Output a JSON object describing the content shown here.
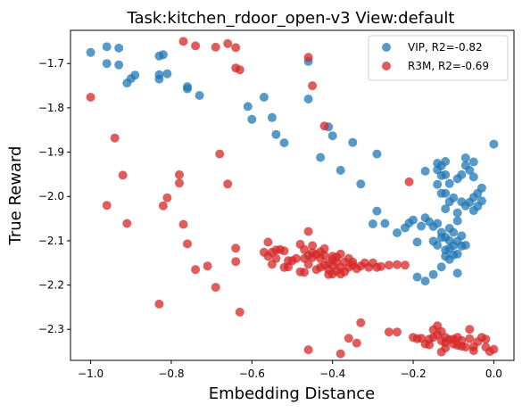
{
  "chart_data": {
    "type": "scatter",
    "title": "Task:kitchen_rdoor_open-v3 View:default",
    "xlabel": "Embedding Distance",
    "ylabel": "True Reward",
    "xlim": [
      -1.05,
      0.05
    ],
    "ylim": [
      -2.37,
      -1.625
    ],
    "xticks": [
      -1.0,
      -0.8,
      -0.6,
      -0.4,
      -0.2,
      0.0
    ],
    "xtick_labels": [
      "−1.0",
      "−0.8",
      "−0.6",
      "−0.4",
      "−0.2",
      "0.0"
    ],
    "yticks": [
      -1.7,
      -1.8,
      -1.9,
      -2.0,
      -2.1,
      -2.2,
      -2.3
    ],
    "ytick_labels": [
      "−1.7",
      "−1.8",
      "−1.9",
      "−2.0",
      "−2.1",
      "−2.2",
      "−2.3"
    ],
    "grid": false,
    "legend_position": "top-right",
    "series": [
      {
        "name": "VIP, R2=-0.82",
        "color": "#1f77b4",
        "points": [
          [
            -1.0,
            -1.675
          ],
          [
            -0.96,
            -1.662
          ],
          [
            -0.96,
            -1.7
          ],
          [
            -0.93,
            -1.665
          ],
          [
            -0.93,
            -1.703
          ],
          [
            -0.91,
            -1.744
          ],
          [
            -0.9,
            -1.734
          ],
          [
            -0.89,
            -1.726
          ],
          [
            -0.83,
            -1.683
          ],
          [
            -0.82,
            -1.68
          ],
          [
            -0.83,
            -1.735
          ],
          [
            -0.83,
            -1.725
          ],
          [
            -0.81,
            -1.723
          ],
          [
            -0.76,
            -1.752
          ],
          [
            -0.76,
            -1.757
          ],
          [
            -0.73,
            -1.772
          ],
          [
            -0.61,
            -1.797
          ],
          [
            -0.6,
            -1.826
          ],
          [
            -0.57,
            -1.776
          ],
          [
            -0.55,
            -1.822
          ],
          [
            -0.54,
            -1.86
          ],
          [
            -0.52,
            -1.879
          ],
          [
            -0.46,
            -1.695
          ],
          [
            -0.46,
            -1.78
          ],
          [
            -0.43,
            -1.912
          ],
          [
            -0.41,
            -1.843
          ],
          [
            -0.4,
            -1.863
          ],
          [
            -0.38,
            -1.941
          ],
          [
            -0.35,
            -1.878
          ],
          [
            -0.33,
            -1.972
          ],
          [
            -0.29,
            -1.904
          ],
          [
            -0.3,
            -2.062
          ],
          [
            -0.29,
            -2.033
          ],
          [
            -0.27,
            -2.061
          ],
          [
            -0.24,
            -2.082
          ],
          [
            -0.22,
            -2.071
          ],
          [
            -0.21,
            -2.06
          ],
          [
            -0.2,
            -2.053
          ],
          [
            -0.19,
            -2.103
          ],
          [
            -0.18,
            -2.067
          ],
          [
            -0.17,
            -2.048
          ],
          [
            -0.16,
            -2.057
          ],
          [
            -0.15,
            -2.068
          ],
          [
            -0.19,
            -2.182
          ],
          [
            -0.17,
            -2.191
          ],
          [
            -0.15,
            -2.176
          ],
          [
            -0.13,
            -2.159
          ],
          [
            -0.12,
            -2.135
          ],
          [
            -0.14,
            -2.061
          ],
          [
            -0.13,
            -2.081
          ],
          [
            -0.12,
            -2.092
          ],
          [
            -0.11,
            -2.072
          ],
          [
            -0.1,
            -2.081
          ],
          [
            -0.09,
            -2.101
          ],
          [
            -0.08,
            -2.089
          ],
          [
            -0.1,
            -2.111
          ],
          [
            -0.12,
            -2.121
          ],
          [
            -0.11,
            -2.142
          ],
          [
            -0.09,
            -2.13
          ],
          [
            -0.08,
            -2.112
          ],
          [
            -0.14,
            -2.11
          ],
          [
            -0.15,
            -2.101
          ],
          [
            -0.13,
            -2.093
          ],
          [
            -0.11,
            -2.1
          ],
          [
            -0.09,
            -2.173
          ],
          [
            -0.1,
            -2.132
          ],
          [
            -0.11,
            -2.118
          ],
          [
            -0.07,
            -2.11
          ],
          [
            -0.12,
            -2.028
          ],
          [
            -0.11,
            -2.012
          ],
          [
            -0.1,
            -2.003
          ],
          [
            -0.08,
            -2.012
          ],
          [
            -0.07,
            -2.021
          ],
          [
            -0.06,
            -2.013
          ],
          [
            -0.05,
            -2.032
          ],
          [
            -0.05,
            -2.002
          ],
          [
            -0.04,
            -1.993
          ],
          [
            -0.03,
            -2.01
          ],
          [
            -0.04,
            -2.022
          ],
          [
            -0.13,
            -1.993
          ],
          [
            -0.14,
            -1.973
          ],
          [
            -0.13,
            -1.953
          ],
          [
            -0.14,
            -1.94
          ],
          [
            -0.12,
            -1.951
          ],
          [
            -0.13,
            -1.931
          ],
          [
            -0.12,
            -1.921
          ],
          [
            -0.14,
            -1.925
          ],
          [
            -0.17,
            -1.943
          ],
          [
            -0.12,
            -1.993
          ],
          [
            -0.11,
            -1.971
          ],
          [
            -0.09,
            -1.96
          ],
          [
            -0.08,
            -1.951
          ],
          [
            -0.07,
            -1.913
          ],
          [
            -0.07,
            -1.93
          ],
          [
            -0.06,
            -1.941
          ],
          [
            -0.05,
            -1.922
          ],
          [
            -0.05,
            -1.956
          ],
          [
            -0.03,
            -1.981
          ],
          [
            0.0,
            -1.882
          ],
          [
            -0.09,
            -2.037
          ],
          [
            -0.09,
            -2.055
          ]
        ]
      },
      {
        "name": "R3M, R2=-0.69",
        "color": "#d62728",
        "points": [
          [
            -1.0,
            -1.776
          ],
          [
            -0.94,
            -1.868
          ],
          [
            -0.92,
            -1.952
          ],
          [
            -0.96,
            -2.02
          ],
          [
            -0.91,
            -2.061
          ],
          [
            -0.83,
            -2.243
          ],
          [
            -0.81,
            -2.003
          ],
          [
            -0.82,
            -2.021
          ],
          [
            -0.78,
            -1.951
          ],
          [
            -0.78,
            -1.97
          ],
          [
            -0.76,
            -2.107
          ],
          [
            -0.77,
            -2.063
          ],
          [
            -0.74,
            -2.165
          ],
          [
            -0.71,
            -2.157
          ],
          [
            -0.69,
            -2.205
          ],
          [
            -0.66,
            -1.972
          ],
          [
            -0.64,
            -2.117
          ],
          [
            -0.63,
            -2.261
          ],
          [
            -0.64,
            -2.147
          ],
          [
            -0.74,
            -1.66
          ],
          [
            -0.68,
            -1.904
          ],
          [
            -0.66,
            -1.655
          ],
          [
            -0.64,
            -1.664
          ],
          [
            -0.64,
            -1.71
          ],
          [
            -0.63,
            -1.714
          ],
          [
            -0.69,
            -1.663
          ],
          [
            -0.77,
            -1.65
          ],
          [
            -0.56,
            -2.103
          ],
          [
            -0.57,
            -2.126
          ],
          [
            -0.56,
            -2.135
          ],
          [
            -0.55,
            -2.153
          ],
          [
            -0.54,
            -2.121
          ],
          [
            -0.53,
            -2.12
          ],
          [
            -0.52,
            -2.123
          ],
          [
            -0.51,
            -2.159
          ],
          [
            -0.5,
            -2.145
          ],
          [
            -0.48,
            -2.17
          ],
          [
            -0.47,
            -2.171
          ],
          [
            -0.46,
            -2.133
          ],
          [
            -0.45,
            -2.111
          ],
          [
            -0.46,
            -2.079
          ],
          [
            -0.45,
            -2.127
          ],
          [
            -0.44,
            -2.131
          ],
          [
            -0.43,
            -2.14
          ],
          [
            -0.42,
            -2.155
          ],
          [
            -0.41,
            -2.15
          ],
          [
            -0.4,
            -2.142
          ],
          [
            -0.39,
            -2.137
          ],
          [
            -0.38,
            -2.16
          ],
          [
            -0.37,
            -2.148
          ],
          [
            -0.36,
            -2.14
          ],
          [
            -0.35,
            -2.155
          ],
          [
            -0.34,
            -2.163
          ],
          [
            -0.33,
            -2.157
          ],
          [
            -0.32,
            -2.15
          ],
          [
            -0.31,
            -2.16
          ],
          [
            -0.3,
            -2.15
          ],
          [
            -0.29,
            -2.16
          ],
          [
            -0.28,
            -2.158
          ],
          [
            -0.26,
            -2.155
          ],
          [
            -0.24,
            -2.154
          ],
          [
            -0.22,
            -2.155
          ],
          [
            -0.48,
            -2.108
          ],
          [
            -0.47,
            -2.12
          ],
          [
            -0.44,
            -2.165
          ],
          [
            -0.43,
            -2.125
          ],
          [
            -0.41,
            -2.165
          ],
          [
            -0.4,
            -2.175
          ],
          [
            -0.39,
            -2.148
          ],
          [
            -0.37,
            -2.17
          ],
          [
            -0.36,
            -2.16
          ],
          [
            -0.35,
            -2.148
          ],
          [
            -0.38,
            -2.13
          ],
          [
            -0.4,
            -2.135
          ],
          [
            -0.42,
            -2.118
          ],
          [
            -0.45,
            -2.138
          ],
          [
            -0.46,
            -2.153
          ],
          [
            -0.47,
            -2.14
          ],
          [
            -0.49,
            -2.14
          ],
          [
            -0.51,
            -2.145
          ],
          [
            -0.52,
            -2.16
          ],
          [
            -0.55,
            -2.126
          ],
          [
            -0.54,
            -2.14
          ],
          [
            -0.4,
            -2.156
          ],
          [
            -0.39,
            -2.168
          ],
          [
            -0.38,
            -2.175
          ],
          [
            -0.42,
            -2.133
          ],
          [
            -0.43,
            -2.16
          ],
          [
            -0.41,
            -2.176
          ],
          [
            -0.45,
            -1.75
          ],
          [
            -0.46,
            -1.686
          ],
          [
            -0.42,
            -1.841
          ],
          [
            -0.21,
            -1.967
          ],
          [
            -0.46,
            -2.346
          ],
          [
            -0.38,
            -2.355
          ],
          [
            -0.33,
            -2.285
          ],
          [
            -0.34,
            -2.331
          ],
          [
            -0.36,
            -2.32
          ],
          [
            -0.26,
            -2.306
          ],
          [
            -0.24,
            -2.306
          ],
          [
            -0.2,
            -2.318
          ],
          [
            -0.17,
            -2.333
          ],
          [
            -0.16,
            -2.322
          ],
          [
            -0.15,
            -2.318
          ],
          [
            -0.14,
            -2.312
          ],
          [
            -0.13,
            -2.326
          ],
          [
            -0.12,
            -2.33
          ],
          [
            -0.11,
            -2.323
          ],
          [
            -0.1,
            -2.333
          ],
          [
            -0.09,
            -2.318
          ],
          [
            -0.08,
            -2.325
          ],
          [
            -0.07,
            -2.34
          ],
          [
            -0.06,
            -2.321
          ],
          [
            -0.05,
            -2.339
          ],
          [
            -0.04,
            -2.328
          ],
          [
            -0.02,
            -2.322
          ],
          [
            -0.01,
            -2.35
          ],
          [
            0.0,
            -2.345
          ],
          [
            -0.15,
            -2.301
          ],
          [
            -0.14,
            -2.292
          ],
          [
            -0.13,
            -2.305
          ],
          [
            -0.12,
            -2.318
          ],
          [
            -0.1,
            -2.322
          ],
          [
            -0.09,
            -2.336
          ],
          [
            -0.16,
            -2.335
          ],
          [
            -0.18,
            -2.32
          ],
          [
            -0.19,
            -2.321
          ],
          [
            -0.13,
            -2.351
          ],
          [
            -0.12,
            -2.342
          ],
          [
            -0.05,
            -2.348
          ],
          [
            -0.03,
            -2.318
          ],
          [
            -0.02,
            -2.34
          ],
          [
            -0.08,
            -2.338
          ],
          [
            -0.06,
            -2.3
          ]
        ]
      }
    ]
  }
}
